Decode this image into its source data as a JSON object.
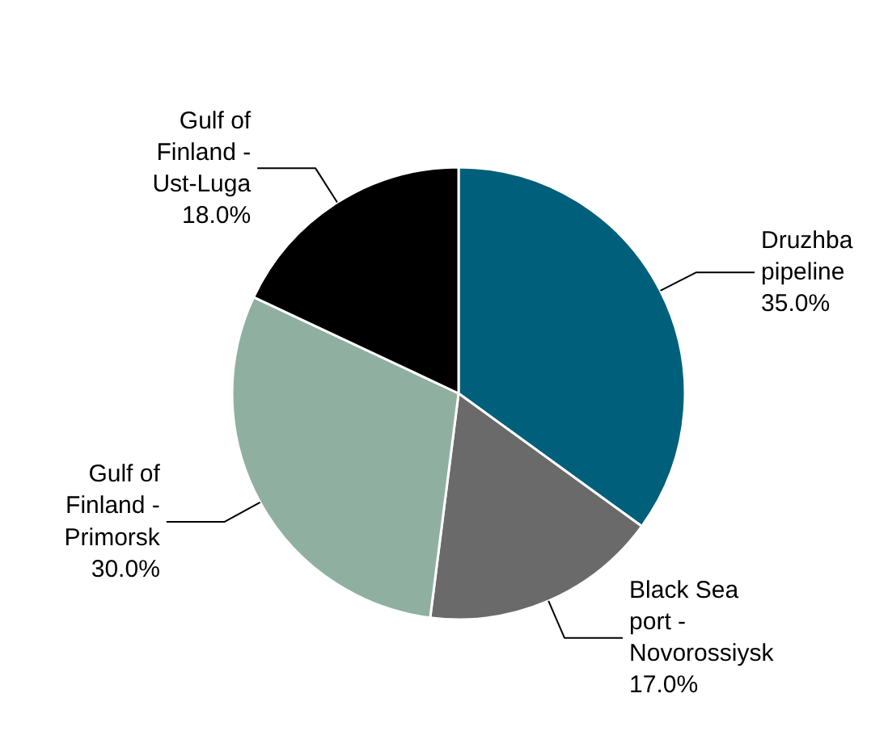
{
  "chart_data": {
    "type": "pie",
    "categories": [
      "Druzhba pipeline",
      "Black Sea port - Novorossiysk",
      "Gulf of Finland - Primorsk",
      "Gulf of Finland - Ust-Luga"
    ],
    "values": [
      35.0,
      17.0,
      30.0,
      18.0
    ],
    "colors": [
      "#005f7a",
      "#6a6a6a",
      "#8fb0a0",
      "#000000"
    ],
    "value_labels": [
      "35.0%",
      "17.0%",
      "30.0%",
      "18.0%"
    ]
  }
}
